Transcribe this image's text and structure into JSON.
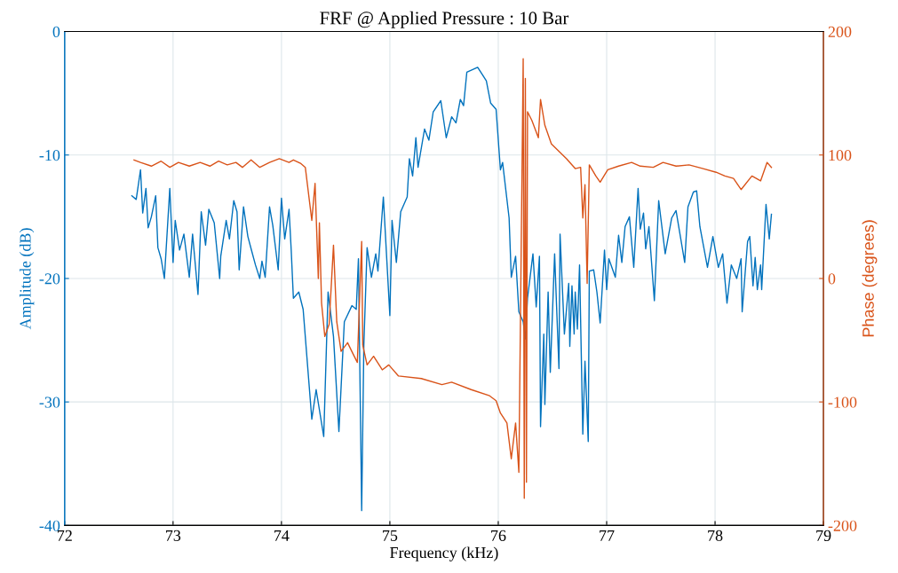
{
  "chart_data": {
    "type": "line",
    "title": "FRF @ Applied Pressure : 10 Bar",
    "xlabel": "Frequency (kHz)",
    "ylabel": "Amplitude (dB)",
    "y2label": "Phase (degrees)",
    "xlim": [
      72,
      79
    ],
    "xticks": [
      72,
      73,
      74,
      75,
      76,
      77,
      78,
      79
    ],
    "ylim": [
      -40,
      0
    ],
    "yticks": [
      -40,
      -30,
      -20,
      -10,
      0
    ],
    "y2lim": [
      -200,
      200
    ],
    "y2ticks": [
      -200,
      -100,
      0,
      100,
      200
    ],
    "grid": true,
    "marker": "none",
    "line_style": "solid",
    "series": [
      {
        "color": "#0072bd",
        "x": [
          72.62,
          72.66,
          72.7,
          72.72,
          72.75,
          72.77,
          72.8,
          72.84,
          72.86,
          72.89,
          72.92,
          72.97,
          73.0,
          73.02,
          73.06,
          73.1,
          73.15,
          73.18,
          73.23,
          73.26,
          73.3,
          73.33,
          73.38,
          73.43,
          73.44,
          73.49,
          73.52,
          73.56,
          73.59,
          73.61,
          73.65,
          73.69,
          73.72,
          73.76,
          73.8,
          73.82,
          73.85,
          73.89,
          73.92,
          73.97,
          74.0,
          74.03,
          74.07,
          74.09,
          74.11,
          74.16,
          74.2,
          74.28,
          74.32,
          74.39,
          74.43,
          74.48,
          74.53,
          74.58,
          74.65,
          74.69,
          74.71,
          74.74,
          74.76,
          74.79,
          74.83,
          74.87,
          74.89,
          74.94,
          75.0,
          75.02,
          75.06,
          75.1,
          75.16,
          75.18,
          75.21,
          75.24,
          75.26,
          75.32,
          75.36,
          75.4,
          75.47,
          75.52,
          75.57,
          75.61,
          75.65,
          75.68,
          75.71,
          75.81,
          75.89,
          75.93,
          75.98,
          76.02,
          76.04,
          76.1,
          76.12,
          76.16,
          76.19,
          76.23,
          76.25,
          76.27,
          76.32,
          76.35,
          76.38,
          76.39,
          76.42,
          76.43,
          76.46,
          76.48,
          76.52,
          76.53,
          76.56,
          76.57,
          76.61,
          76.65,
          76.66,
          76.68,
          76.7,
          76.71,
          76.73,
          76.75,
          76.78,
          76.8,
          76.83,
          76.84,
          76.88,
          76.91,
          76.94,
          76.98,
          77.0,
          77.02,
          77.08,
          77.11,
          77.14,
          77.17,
          77.21,
          77.25,
          77.29,
          77.31,
          77.34,
          77.36,
          77.39,
          77.44,
          77.48,
          77.54,
          77.6,
          77.64,
          77.72,
          77.75,
          77.8,
          77.83,
          77.86,
          77.93,
          77.98,
          78.03,
          78.07,
          78.11,
          78.15,
          78.2,
          78.24,
          78.25,
          78.3,
          78.32,
          78.35,
          78.37,
          78.39,
          78.42,
          78.43,
          78.47,
          78.5,
          78.52
        ],
        "values": [
          -13.3,
          -13.6,
          -11.2,
          -14.7,
          -12.7,
          -15.9,
          -15.0,
          -13.3,
          -17.5,
          -18.4,
          -20.0,
          -12.7,
          -18.7,
          -15.3,
          -17.7,
          -16.4,
          -19.9,
          -16.4,
          -21.3,
          -14.6,
          -17.3,
          -14.4,
          -15.5,
          -20.0,
          -18.2,
          -15.3,
          -16.8,
          -13.7,
          -14.6,
          -19.3,
          -14.2,
          -16.6,
          -17.6,
          -18.9,
          -20.0,
          -18.6,
          -19.9,
          -14.2,
          -15.7,
          -19.3,
          -13.5,
          -16.8,
          -14.4,
          -17.7,
          -21.6,
          -21.1,
          -22.5,
          -31.4,
          -29.0,
          -32.8,
          -21.1,
          -24.7,
          -32.4,
          -23.5,
          -22.2,
          -22.5,
          -18.4,
          -38.8,
          -25.4,
          -17.5,
          -19.9,
          -18.0,
          -19.4,
          -13.4,
          -23.0,
          -15.3,
          -18.7,
          -14.6,
          -13.4,
          -10.3,
          -11.7,
          -8.6,
          -11.0,
          -7.9,
          -8.8,
          -6.5,
          -5.6,
          -8.6,
          -6.9,
          -7.4,
          -5.5,
          -6.0,
          -3.3,
          -2.9,
          -4.0,
          -5.8,
          -6.3,
          -11.2,
          -10.6,
          -15.1,
          -19.9,
          -18.2,
          -22.7,
          -23.5,
          -24.9,
          -21.6,
          -18.0,
          -22.3,
          -18.2,
          -32.0,
          -24.5,
          -30.2,
          -21.1,
          -27.6,
          -18.0,
          -20.4,
          -27.3,
          -16.4,
          -24.5,
          -20.4,
          -25.5,
          -20.6,
          -24.5,
          -21.1,
          -24.1,
          -18.9,
          -32.6,
          -26.7,
          -33.2,
          -19.4,
          -19.3,
          -21.1,
          -23.6,
          -17.7,
          -20.9,
          -18.4,
          -19.9,
          -16.5,
          -18.7,
          -15.8,
          -15.0,
          -19.1,
          -12.7,
          -16.0,
          -14.7,
          -17.6,
          -15.8,
          -21.8,
          -13.7,
          -18.0,
          -15.1,
          -14.5,
          -18.7,
          -14.2,
          -13.0,
          -12.9,
          -15.8,
          -19.1,
          -16.6,
          -19.1,
          -18.0,
          -22.0,
          -18.9,
          -20.0,
          -18.4,
          -22.7,
          -17.0,
          -16.6,
          -20.6,
          -18.3,
          -20.9,
          -18.9,
          -20.9,
          -14.0,
          -16.8,
          -14.8
        ]
      },
      {
        "color": "#d95319",
        "axis": "y2",
        "x": [
          72.64,
          72.7,
          72.8,
          72.89,
          72.97,
          73.05,
          73.15,
          73.25,
          73.34,
          73.42,
          73.5,
          73.58,
          73.64,
          73.72,
          73.8,
          73.89,
          73.98,
          74.07,
          74.11,
          74.18,
          74.22,
          74.28,
          74.31,
          74.34,
          74.35,
          74.37,
          74.4,
          74.44,
          74.48,
          74.51,
          74.55,
          74.61,
          74.66,
          74.7,
          74.74,
          74.75,
          74.79,
          74.85,
          74.93,
          74.99,
          75.08,
          75.29,
          75.48,
          75.57,
          75.75,
          75.92,
          75.98,
          76.02,
          76.08,
          76.12,
          76.16,
          76.19,
          76.23,
          76.24,
          76.25,
          76.26,
          76.27,
          76.31,
          76.37,
          76.39,
          76.43,
          76.49,
          76.63,
          76.71,
          76.76,
          76.78,
          76.8,
          76.82,
          76.84,
          76.9,
          76.94,
          77.01,
          77.11,
          77.23,
          77.31,
          77.43,
          77.52,
          77.64,
          77.76,
          77.89,
          78.01,
          78.09,
          78.17,
          78.24,
          78.34,
          78.42,
          78.48,
          78.52
        ],
        "values": [
          96,
          94,
          91,
          95,
          90,
          94,
          91,
          94,
          91,
          95,
          92,
          94,
          90,
          96,
          90,
          94,
          97,
          94,
          96,
          93,
          90,
          47,
          77,
          0,
          45,
          -20,
          -47,
          -37,
          27,
          -35,
          -59,
          -52,
          -61,
          -68,
          30,
          -54,
          -70,
          -63,
          -74,
          -70,
          -79,
          -81,
          -86,
          -84,
          -90,
          -95,
          -99,
          -109,
          -117,
          -146,
          -117,
          -157,
          178,
          -178,
          162,
          -165,
          135,
          128,
          114,
          145,
          124,
          109,
          97,
          89,
          90,
          49,
          76,
          -4,
          92,
          83,
          78,
          88,
          91,
          94,
          91,
          90,
          94,
          91,
          92,
          89,
          86,
          83,
          81,
          72,
          83,
          79,
          94,
          90
        ]
      }
    ]
  }
}
